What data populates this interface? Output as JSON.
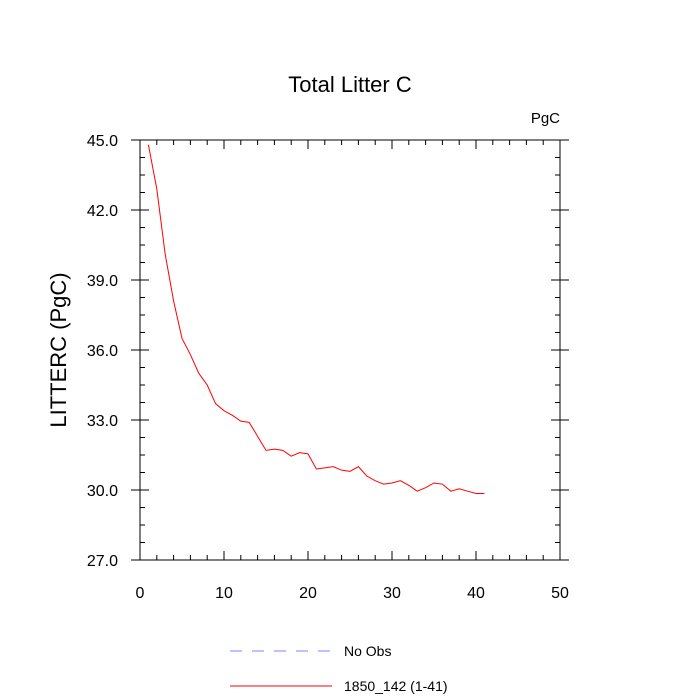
{
  "chart_data": {
    "type": "line",
    "title": "Total Litter C",
    "units": "PgC",
    "xlabel": "",
    "ylabel": "LITTERC  (PgC)",
    "xlim": [
      0,
      50
    ],
    "ylim": [
      27,
      45
    ],
    "x_ticks": [
      0,
      10,
      20,
      30,
      40,
      50
    ],
    "x_tick_labels": [
      "0",
      "10",
      "20",
      "30",
      "40",
      "50"
    ],
    "y_ticks": [
      27,
      30,
      33,
      36,
      39,
      42,
      45
    ],
    "y_tick_labels": [
      "27.0",
      "30.0",
      "33.0",
      "36.0",
      "39.0",
      "42.0",
      "45.0"
    ],
    "grid": false,
    "legend": [
      {
        "label": "No Obs",
        "color": "#8080ff",
        "style": "dashed"
      },
      {
        "label": "1850_142 (1-41)",
        "color": "#ff0000",
        "style": "solid"
      }
    ],
    "series": [
      {
        "name": "1850_142 (1-41)",
        "color": "#ff0000",
        "x": [
          1,
          2,
          3,
          4,
          5,
          6,
          7,
          8,
          9,
          10,
          11,
          12,
          13,
          14,
          15,
          16,
          17,
          18,
          19,
          20,
          21,
          22,
          23,
          24,
          25,
          26,
          27,
          28,
          29,
          30,
          31,
          32,
          33,
          34,
          35,
          36,
          37,
          38,
          39,
          40,
          41
        ],
        "values": [
          44.8,
          42.9,
          40.1,
          38.1,
          36.5,
          35.8,
          35.0,
          34.5,
          33.7,
          33.4,
          33.2,
          32.95,
          32.9,
          32.3,
          31.7,
          31.75,
          31.7,
          31.45,
          31.6,
          31.55,
          30.9,
          30.95,
          31.0,
          30.85,
          30.8,
          31.0,
          30.6,
          30.4,
          30.25,
          30.3,
          30.4,
          30.2,
          29.95,
          30.1,
          30.3,
          30.25,
          29.95,
          30.05,
          29.95,
          29.85,
          29.85
        ]
      }
    ]
  }
}
